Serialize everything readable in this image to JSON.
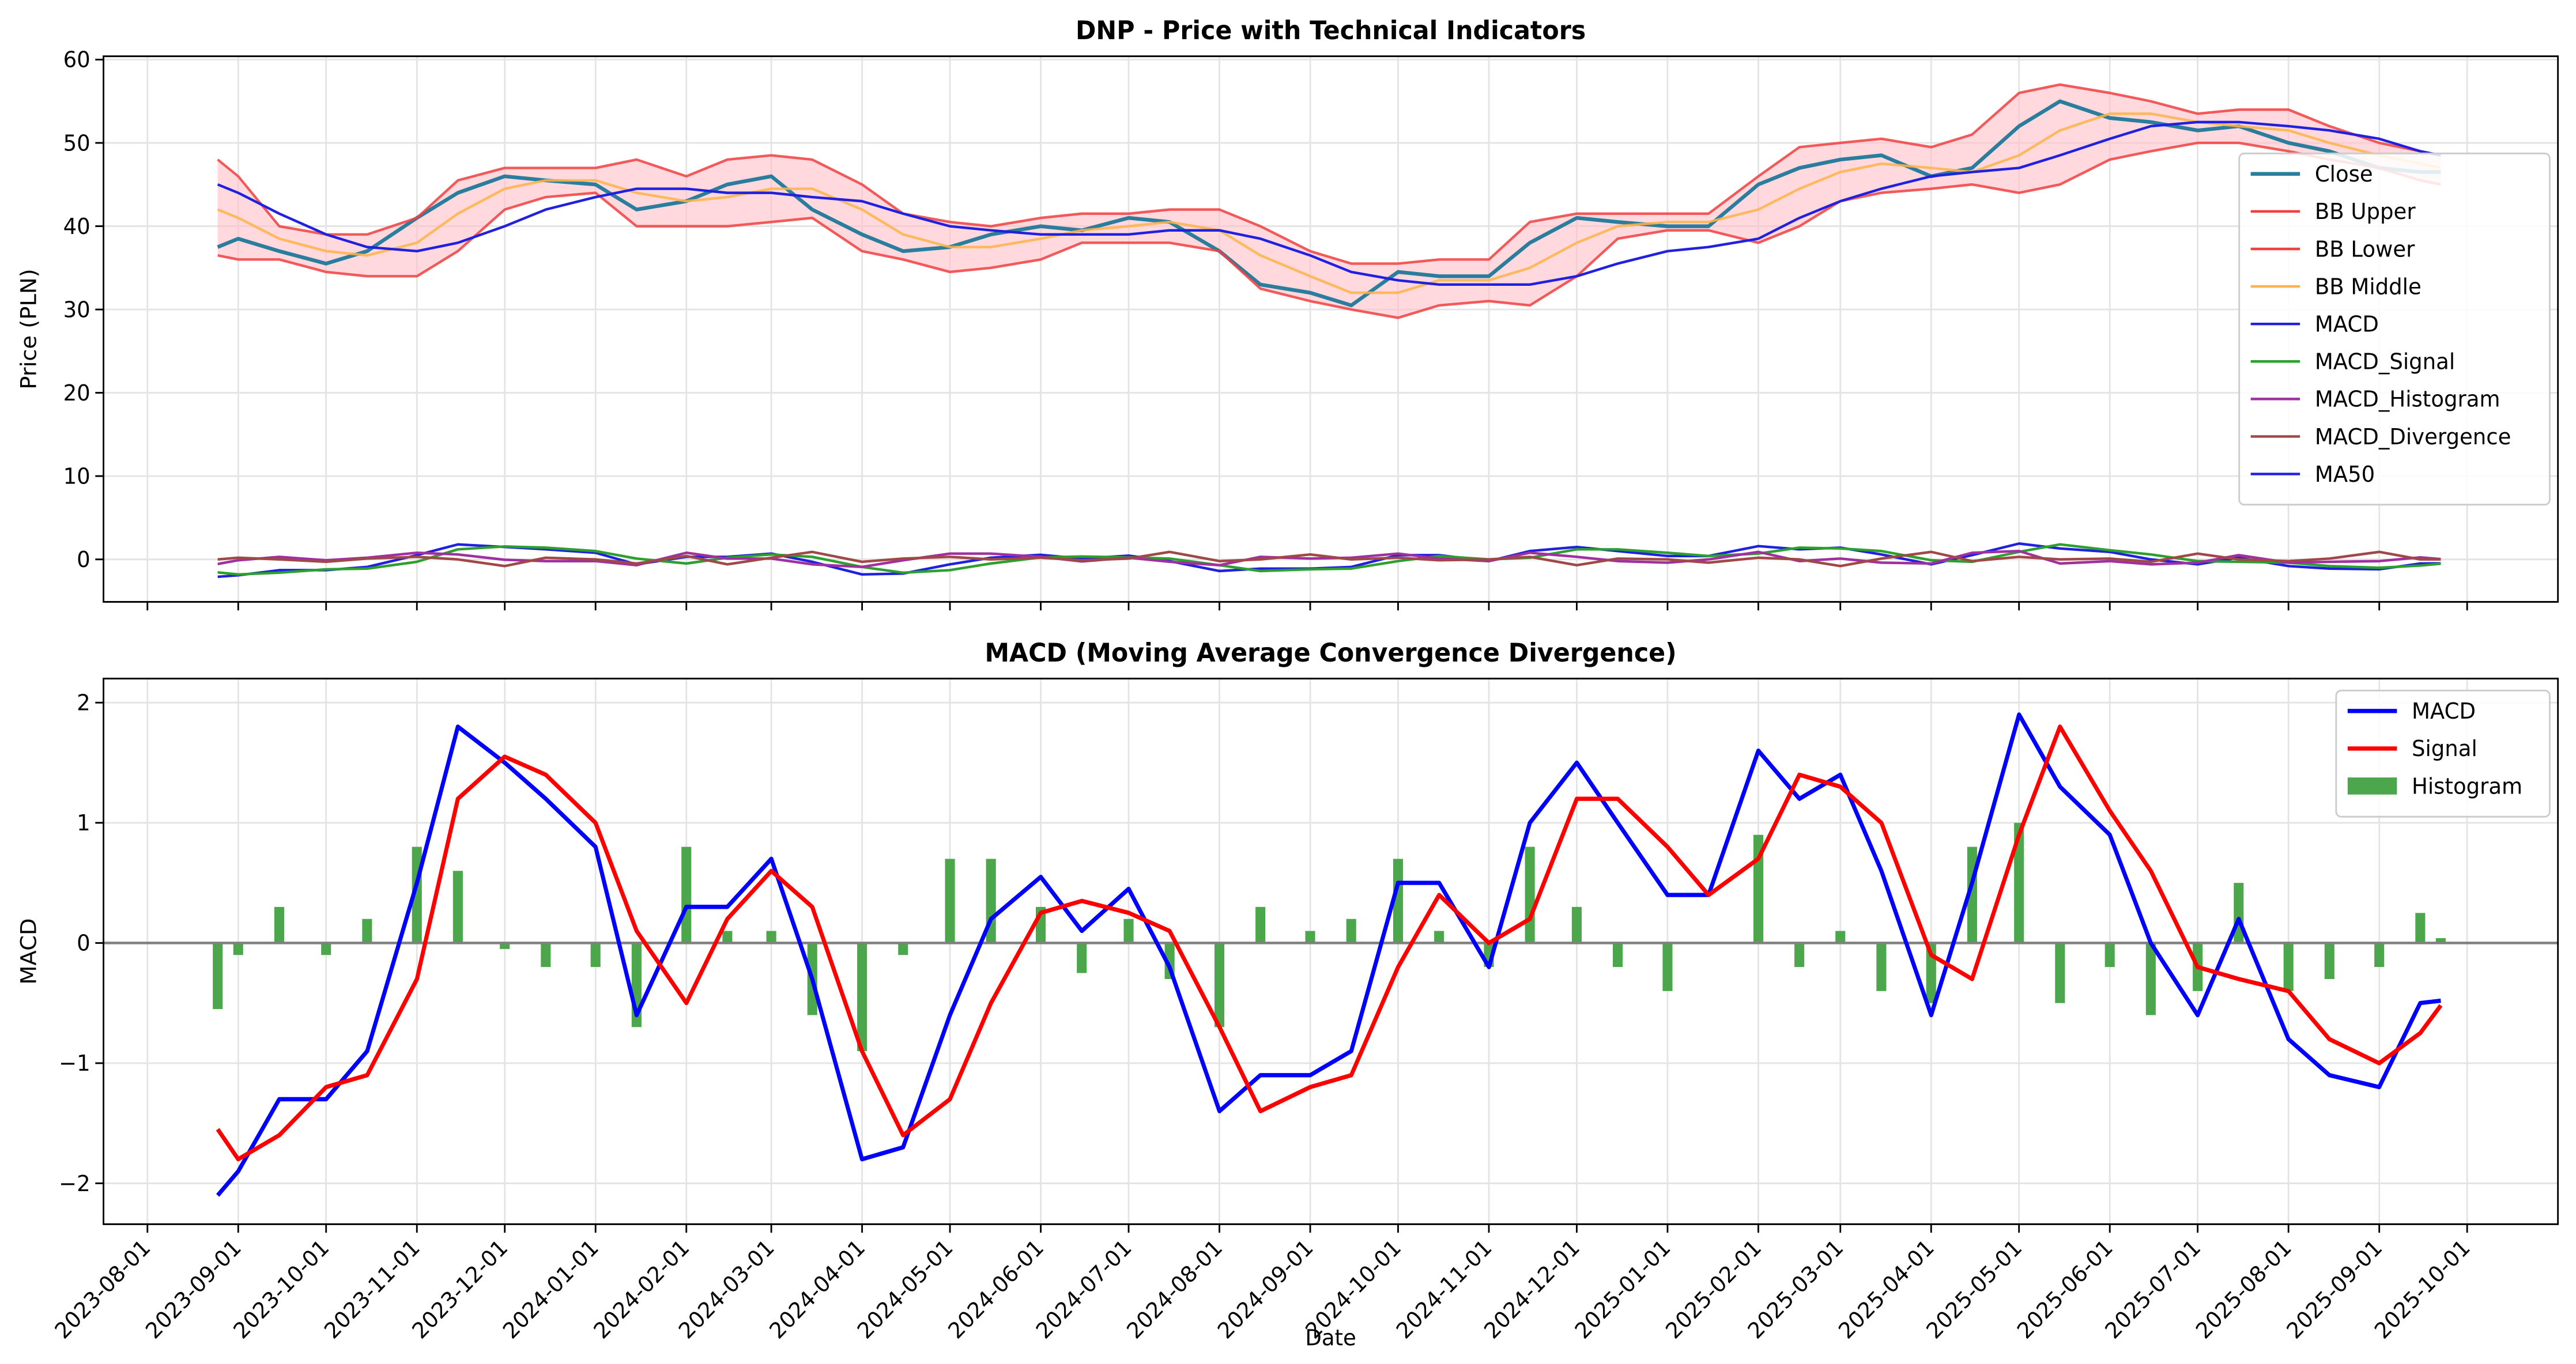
{
  "chart_data": [
    {
      "type": "line",
      "title": "DNP - Price with Technical Indicators",
      "ylabel": "Price (PLN)",
      "x": [
        "2023-08-25",
        "2023-09-01",
        "2023-09-15",
        "2023-10-01",
        "2023-10-15",
        "2023-11-01",
        "2023-11-15",
        "2023-12-01",
        "2023-12-15",
        "2024-01-01",
        "2024-01-15",
        "2024-02-01",
        "2024-02-15",
        "2024-03-01",
        "2024-03-15",
        "2024-04-01",
        "2024-04-15",
        "2024-05-01",
        "2024-05-15",
        "2024-06-01",
        "2024-06-15",
        "2024-07-01",
        "2024-07-15",
        "2024-08-01",
        "2024-08-15",
        "2024-09-01",
        "2024-09-15",
        "2024-10-01",
        "2024-10-15",
        "2024-11-01",
        "2024-11-15",
        "2024-12-01",
        "2024-12-15",
        "2025-01-01",
        "2025-01-15",
        "2025-02-01",
        "2025-02-15",
        "2025-03-01",
        "2025-03-15",
        "2025-04-01",
        "2025-04-15",
        "2025-05-01",
        "2025-05-15",
        "2025-06-01",
        "2025-06-15",
        "2025-07-01",
        "2025-07-15",
        "2025-08-01",
        "2025-08-15",
        "2025-09-01",
        "2025-09-15",
        "2025-09-22"
      ],
      "series": [
        {
          "name": "Close",
          "color": "#2a7d9c",
          "width": 2.2,
          "values": [
            37.5,
            38.5,
            37,
            35.5,
            37,
            41,
            44,
            46,
            45.5,
            45,
            42,
            43,
            45,
            46,
            42,
            39,
            37,
            37.5,
            39,
            40,
            39.5,
            41,
            40.5,
            37,
            33,
            32,
            30.5,
            34.5,
            34,
            34,
            38,
            41,
            40.5,
            40,
            40,
            45,
            47,
            48,
            48.5,
            46,
            47,
            52,
            55,
            53,
            52.5,
            51.5,
            52,
            50,
            49,
            47,
            46.5,
            46.5
          ]
        },
        {
          "name": "BB Upper",
          "color": "#f04040",
          "width": 1.5,
          "values": [
            48,
            46,
            40,
            39,
            39,
            41,
            45.5,
            47,
            47,
            47,
            48,
            46,
            48,
            48.5,
            48,
            45,
            41.5,
            40.5,
            40,
            41,
            41.5,
            41.5,
            42,
            42,
            40,
            37,
            35.5,
            35.5,
            36,
            36,
            40.5,
            41.5,
            41.5,
            41.5,
            41.5,
            46,
            49.5,
            50,
            50.5,
            49.5,
            51,
            56,
            57,
            56,
            55,
            53.5,
            54,
            54,
            52,
            50,
            49,
            48.5
          ]
        },
        {
          "name": "BB Lower",
          "color": "#f04040",
          "width": 1.5,
          "values": [
            36.5,
            36,
            36,
            34.5,
            34,
            34,
            37,
            42,
            43.5,
            44,
            40,
            40,
            40,
            40.5,
            41,
            37,
            36,
            34.5,
            35,
            36,
            38,
            38,
            38,
            37,
            32.5,
            31,
            30,
            29,
            30.5,
            31,
            30.5,
            34,
            38.5,
            39.5,
            39.5,
            38,
            40,
            43,
            44,
            44.5,
            45,
            44,
            45,
            48,
            49,
            50,
            50,
            49,
            48,
            47,
            45.5,
            45
          ]
        },
        {
          "name": "BB Middle",
          "color": "#ffb347",
          "width": 1.5,
          "values": [
            42,
            41,
            38.5,
            37,
            36.5,
            38,
            41.5,
            44.5,
            45.5,
            45.5,
            44,
            43,
            43.5,
            44.5,
            44.5,
            42,
            39,
            37.5,
            37.5,
            38.5,
            39.5,
            40,
            40.5,
            39.5,
            36.5,
            34,
            32,
            32,
            33.5,
            33.5,
            35,
            38,
            40,
            40.5,
            40.5,
            42,
            44.5,
            46.5,
            47.5,
            47,
            46.5,
            48.5,
            51.5,
            53.5,
            53.5,
            52.5,
            52,
            51.5,
            50,
            48.5,
            47.5,
            47
          ]
        },
        {
          "name": "MACD",
          "color": "#2020e0",
          "width": 1.5,
          "values": [
            -2.1,
            -1.9,
            -1.3,
            -1.3,
            -0.9,
            0.5,
            1.8,
            1.5,
            1.2,
            0.8,
            -0.6,
            0.3,
            0.3,
            0.7,
            -0.3,
            -1.8,
            -1.7,
            -0.6,
            0.2,
            0.55,
            0.1,
            0.45,
            -0.2,
            -1.4,
            -1.1,
            -1.1,
            -0.9,
            0.5,
            0.5,
            -0.2,
            1,
            1.5,
            1,
            0.4,
            0.4,
            1.6,
            1.2,
            1.4,
            0.6,
            -0.6,
            0.5,
            1.9,
            1.3,
            0.9,
            0,
            -0.6,
            0.2,
            -0.8,
            -1.1,
            -1.2,
            -0.5,
            -0.48
          ]
        },
        {
          "name": "MACD_Signal",
          "color": "#2ca02c",
          "width": 1.5,
          "values": [
            -1.55,
            -1.8,
            -1.6,
            -1.2,
            -1.1,
            -0.3,
            1.2,
            1.55,
            1.4,
            1,
            0.1,
            -0.5,
            0.2,
            0.6,
            0.3,
            -0.9,
            -1.6,
            -1.3,
            -0.5,
            0.25,
            0.35,
            0.25,
            0.1,
            -0.7,
            -1.4,
            -1.2,
            -1.1,
            -0.2,
            0.4,
            0,
            0.2,
            1.2,
            1.2,
            0.8,
            0.4,
            0.7,
            1.4,
            1.3,
            1,
            -0.1,
            -0.3,
            0.9,
            1.8,
            1.1,
            0.6,
            -0.2,
            -0.3,
            -0.4,
            -0.8,
            -1,
            -0.75,
            -0.52
          ]
        },
        {
          "name": "MACD_Histogram",
          "color": "#a030a0",
          "width": 1.5,
          "values": [
            -0.55,
            -0.1,
            0.3,
            -0.1,
            0.2,
            0.8,
            0.6,
            -0.05,
            -0.2,
            -0.2,
            -0.7,
            0.8,
            0.1,
            0.1,
            -0.6,
            -0.9,
            -0.1,
            0.7,
            0.7,
            0.3,
            -0.25,
            0.2,
            -0.3,
            -0.7,
            0.3,
            0.1,
            0.2,
            0.7,
            0.1,
            -0.2,
            0.8,
            0.3,
            -0.2,
            -0.4,
            0,
            0.9,
            -0.2,
            0.1,
            -0.4,
            -0.5,
            0.8,
            1,
            -0.5,
            -0.2,
            -0.6,
            -0.4,
            0.5,
            -0.4,
            -0.3,
            -0.2,
            0.25,
            0.04
          ]
        },
        {
          "name": "MACD_Divergence",
          "color": "#a04848",
          "width": 1.5,
          "values": [
            0,
            0.2,
            0,
            -0.3,
            0.1,
            0.3,
            0,
            -0.8,
            0.2,
            0,
            -0.5,
            0.4,
            -0.6,
            0.2,
            0.9,
            -0.3,
            0.1,
            0.3,
            0,
            0.2,
            -0.1,
            0.1,
            0.9,
            -0.2,
            0,
            0.6,
            0,
            0.2,
            -0.1,
            0,
            0.3,
            -0.7,
            0.1,
            0,
            -0.4,
            0.2,
            0,
            -0.8,
            0.1,
            0.9,
            -0.2,
            0.3,
            0,
            0.1,
            -0.3,
            0.7,
            0,
            -0.2,
            0.1,
            0.9,
            0,
            0
          ]
        },
        {
          "name": "MA50",
          "color": "#2020e0",
          "width": 1.5,
          "values": [
            45,
            44,
            41.5,
            39,
            37.5,
            37,
            38,
            40,
            42,
            43.5,
            44.5,
            44.5,
            44,
            44,
            43.5,
            43,
            41.5,
            40,
            39.5,
            39,
            39,
            39,
            39.5,
            39.5,
            38.5,
            36.5,
            34.5,
            33.5,
            33,
            33,
            33,
            34,
            35.5,
            37,
            37.5,
            38.5,
            41,
            43,
            44.5,
            46,
            46.5,
            47,
            48.5,
            50.5,
            52,
            52.5,
            52.5,
            52,
            51.5,
            50.5,
            49,
            48.5
          ]
        }
      ],
      "fill_between": {
        "series": [
          "BB Upper",
          "BB Lower"
        ],
        "color": "#ffc0c8"
      },
      "xlim": [
        "2023-07-17",
        "2025-11-01"
      ],
      "ylim": [
        -5.1,
        60.4
      ],
      "yticks": [
        0,
        10,
        20,
        30,
        40,
        50,
        60
      ],
      "grid": true,
      "legend": "center right"
    },
    {
      "type": "line",
      "title": "MACD (Moving Average Convergence Divergence)",
      "xlabel": "Date",
      "ylabel": "MACD",
      "x": [
        "2023-08-25",
        "2023-09-01",
        "2023-09-15",
        "2023-10-01",
        "2023-10-15",
        "2023-11-01",
        "2023-11-15",
        "2023-12-01",
        "2023-12-15",
        "2024-01-01",
        "2024-01-15",
        "2024-02-01",
        "2024-02-15",
        "2024-03-01",
        "2024-03-15",
        "2024-04-01",
        "2024-04-15",
        "2024-05-01",
        "2024-05-15",
        "2024-06-01",
        "2024-06-15",
        "2024-07-01",
        "2024-07-15",
        "2024-08-01",
        "2024-08-15",
        "2024-09-01",
        "2024-09-15",
        "2024-10-01",
        "2024-10-15",
        "2024-11-01",
        "2024-11-15",
        "2024-12-01",
        "2024-12-15",
        "2025-01-01",
        "2025-01-15",
        "2025-02-01",
        "2025-02-15",
        "2025-03-01",
        "2025-03-15",
        "2025-04-01",
        "2025-04-15",
        "2025-05-01",
        "2025-05-15",
        "2025-06-01",
        "2025-06-15",
        "2025-07-01",
        "2025-07-15",
        "2025-08-01",
        "2025-08-15",
        "2025-09-01",
        "2025-09-15",
        "2025-09-22"
      ],
      "series": [
        {
          "name": "MACD",
          "color": "#0000ff",
          "width": 2.5,
          "values": [
            -2.1,
            -1.9,
            -1.3,
            -1.3,
            -0.9,
            0.5,
            1.8,
            1.5,
            1.2,
            0.8,
            -0.6,
            0.3,
            0.3,
            0.7,
            -0.3,
            -1.8,
            -1.7,
            -0.6,
            0.2,
            0.55,
            0.1,
            0.45,
            -0.2,
            -1.4,
            -1.1,
            -1.1,
            -0.9,
            0.5,
            0.5,
            -0.2,
            1,
            1.5,
            1,
            0.4,
            0.4,
            1.6,
            1.2,
            1.4,
            0.6,
            -0.6,
            0.5,
            1.9,
            1.3,
            0.9,
            0,
            -0.6,
            0.2,
            -0.8,
            -1.1,
            -1.2,
            -0.5,
            -0.48
          ]
        },
        {
          "name": "Signal",
          "color": "#ff0000",
          "width": 2.5,
          "values": [
            -1.55,
            -1.8,
            -1.6,
            -1.2,
            -1.1,
            -0.3,
            1.2,
            1.55,
            1.4,
            1,
            0.1,
            -0.5,
            0.2,
            0.6,
            0.3,
            -0.9,
            -1.6,
            -1.3,
            -0.5,
            0.25,
            0.35,
            0.25,
            0.1,
            -0.7,
            -1.4,
            -1.2,
            -1.1,
            -0.2,
            0.4,
            0,
            0.2,
            1.2,
            1.2,
            0.8,
            0.4,
            0.7,
            1.4,
            1.3,
            1,
            -0.1,
            -0.3,
            0.9,
            1.8,
            1.1,
            0.6,
            -0.2,
            -0.3,
            -0.4,
            -0.8,
            -1,
            -0.75,
            -0.52
          ]
        },
        {
          "name": "Histogram",
          "color": "#4ca64c",
          "kind": "bar",
          "values": [
            -0.55,
            -0.1,
            0.3,
            -0.1,
            0.2,
            0.8,
            0.6,
            -0.05,
            -0.2,
            -0.2,
            -0.7,
            0.8,
            0.1,
            0.1,
            -0.6,
            -0.9,
            -0.1,
            0.7,
            0.7,
            0.3,
            -0.25,
            0.2,
            -0.3,
            -0.7,
            0.3,
            0.1,
            0.2,
            0.7,
            0.1,
            -0.2,
            0.8,
            0.3,
            -0.2,
            -0.4,
            0,
            0.9,
            -0.2,
            0.1,
            -0.4,
            -0.5,
            0.8,
            1,
            -0.5,
            -0.2,
            -0.6,
            -0.4,
            0.5,
            -0.4,
            -0.3,
            -0.2,
            0.25,
            0.04
          ]
        }
      ],
      "hline": {
        "value": 0,
        "color": "#808080"
      },
      "xlim": [
        "2023-07-17",
        "2025-11-01"
      ],
      "ylim": [
        -2.34,
        2.2
      ],
      "xticks": [
        "2023-08-01",
        "2023-09-01",
        "2023-10-01",
        "2023-11-01",
        "2023-12-01",
        "2024-01-01",
        "2024-02-01",
        "2024-03-01",
        "2024-04-01",
        "2024-05-01",
        "2024-06-01",
        "2024-07-01",
        "2024-08-01",
        "2024-09-01",
        "2024-10-01",
        "2024-11-01",
        "2024-12-01",
        "2025-01-01",
        "2025-02-01",
        "2025-03-01",
        "2025-04-01",
        "2025-05-01",
        "2025-06-01",
        "2025-07-01",
        "2025-08-01",
        "2025-09-01",
        "2025-10-01"
      ],
      "yticks": [
        {
          "value": -2,
          "label": "−2"
        },
        {
          "value": -1,
          "label": "−1"
        },
        0,
        1,
        2
      ],
      "grid": true,
      "legend": "upper right"
    }
  ]
}
